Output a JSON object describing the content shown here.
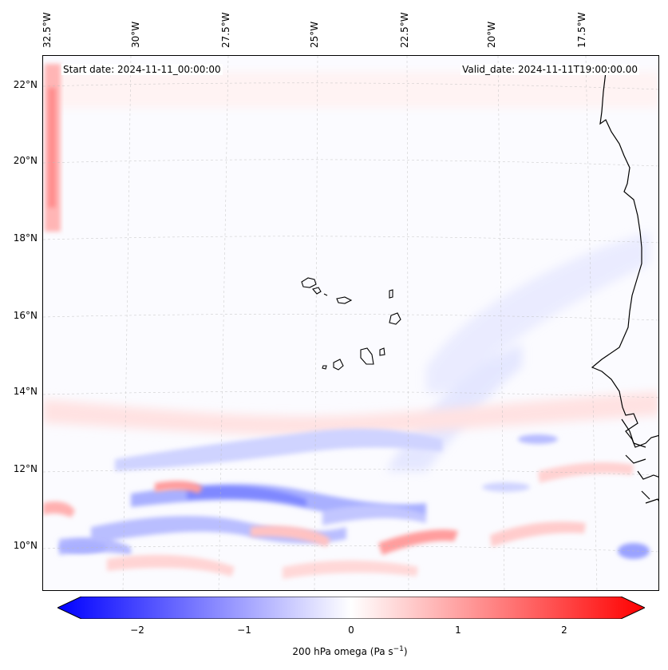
{
  "header": {
    "start_date": "Start date: 2024-11-11_00:00:00",
    "valid_date": "Valid_date: 2024-11-11T19:00:00.00"
  },
  "longitude_labels": [
    "32.5°W",
    "30°W",
    "27.5°W",
    "25°W",
    "22.5°W",
    "20°W",
    "17.5°W"
  ],
  "latitude_labels": [
    "22°N",
    "20°N",
    "18°N",
    "16°N",
    "14°N",
    "12°N",
    "10°N"
  ],
  "colorbar": {
    "ticks": [
      "−2",
      "−1",
      "0",
      "1",
      "2"
    ],
    "label_main": "200 hPa omega (Pa s",
    "label_sup": "−1",
    "label_end": ")",
    "colors": {
      "min": "#0000ff",
      "mid": "#ffffff",
      "max": "#ff0000"
    }
  },
  "map": {
    "variable": "200 hPa omega",
    "features": [
      "coastline-west-africa",
      "cape-verde-islands",
      "gridlines"
    ]
  }
}
